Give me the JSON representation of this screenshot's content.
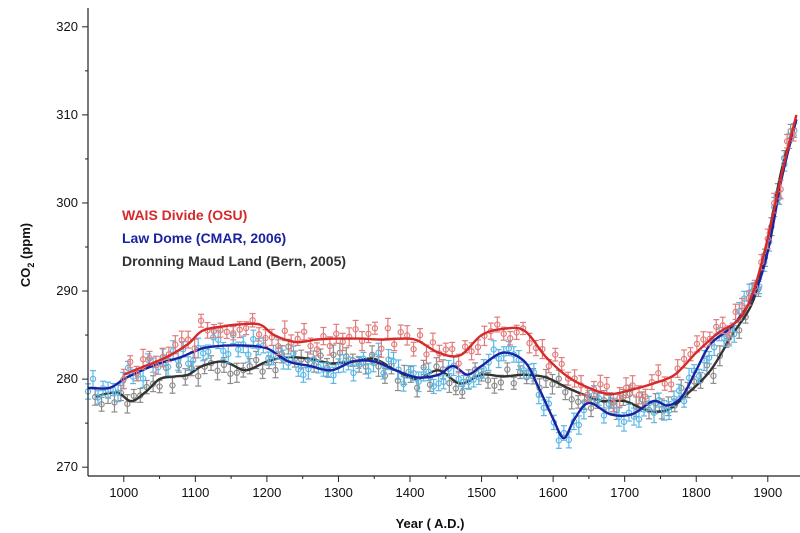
{
  "chart_data": {
    "type": "line",
    "title": "",
    "xlabel": "Year ( A.D.)",
    "ylabel_main": "CO",
    "ylabel_sub": "2",
    "ylabel_unit": " (ppm)",
    "xlim": [
      950,
      1945
    ],
    "ylim": [
      269,
      321
    ],
    "xticks": [
      "1000",
      "1100",
      "1200",
      "1300",
      "1400",
      "1500",
      "1600",
      "1700",
      "1800",
      "1900"
    ],
    "yticks": [
      "270",
      "280",
      "290",
      "300",
      "310",
      "320"
    ],
    "legend_position": "left-middle",
    "grid": false,
    "series": [
      {
        "name": "WAIS Divide (OSU)",
        "color": "#d42a2a",
        "point_color": "#e27c7c",
        "x": [
          1000,
          1030,
          1060,
          1090,
          1110,
          1140,
          1160,
          1190,
          1210,
          1240,
          1270,
          1300,
          1330,
          1360,
          1390,
          1410,
          1440,
          1470,
          1500,
          1530,
          1560,
          1590,
          1620,
          1650,
          1680,
          1710,
          1740,
          1770,
          1800,
          1830,
          1860,
          1880,
          1900,
          1920,
          1940
        ],
        "y": [
          280.5,
          281.5,
          282.5,
          284.0,
          285.5,
          286.0,
          286.2,
          286.2,
          285.0,
          284.2,
          284.5,
          284.6,
          284.6,
          284.5,
          284.6,
          284.4,
          283.0,
          282.7,
          285.0,
          285.7,
          285.5,
          282.5,
          280.3,
          279.0,
          278.3,
          278.8,
          279.5,
          280.5,
          283.0,
          285.2,
          286.8,
          290.0,
          296.0,
          303.5,
          310.0
        ]
      },
      {
        "name": "Law Dome (CMAR, 2006)",
        "color": "#1a22a0",
        "point_color": "#5bb8e6",
        "x": [
          950,
          980,
          1000,
          1020,
          1050,
          1080,
          1110,
          1140,
          1170,
          1200,
          1230,
          1260,
          1290,
          1320,
          1350,
          1380,
          1410,
          1440,
          1460,
          1480,
          1500,
          1530,
          1560,
          1580,
          1600,
          1615,
          1630,
          1650,
          1680,
          1710,
          1740,
          1760,
          1780,
          1800,
          1820,
          1850,
          1880,
          1900,
          1920,
          1940
        ],
        "y": [
          279.0,
          279.0,
          280.0,
          280.8,
          281.8,
          282.5,
          283.5,
          283.8,
          283.8,
          283.5,
          282.0,
          281.5,
          281.0,
          282.0,
          282.0,
          281.0,
          280.2,
          280.5,
          281.5,
          280.5,
          281.5,
          283.0,
          282.0,
          279.0,
          275.5,
          273.3,
          275.5,
          277.3,
          276.0,
          276.0,
          277.5,
          277.0,
          278.0,
          281.0,
          284.0,
          286.0,
          289.5,
          294.5,
          303.0,
          309.5
        ]
      },
      {
        "name": "Dronning Maud Land (Bern, 2005)",
        "color": "#333333",
        "point_color": "#8c8c8c",
        "x": [
          960,
          990,
          1010,
          1030,
          1050,
          1070,
          1090,
          1110,
          1140,
          1170,
          1200,
          1230,
          1260,
          1290,
          1320,
          1350,
          1380,
          1410,
          1440,
          1470,
          1500,
          1530,
          1560,
          1590,
          1620,
          1650,
          1670,
          1700,
          1730,
          1760,
          1790,
          1820,
          1850,
          1880,
          1900,
          1920,
          1940
        ],
        "y": [
          278.0,
          278.5,
          277.5,
          278.5,
          280.0,
          280.3,
          280.5,
          281.5,
          282.0,
          281.0,
          282.0,
          282.5,
          282.3,
          281.8,
          282.0,
          282.3,
          281.0,
          280.0,
          281.0,
          279.5,
          280.5,
          280.3,
          280.5,
          280.2,
          279.0,
          278.0,
          277.5,
          277.5,
          276.5,
          276.5,
          278.5,
          281.0,
          285.0,
          289.0,
          296.0,
          304.0,
          309.5
        ]
      }
    ]
  }
}
